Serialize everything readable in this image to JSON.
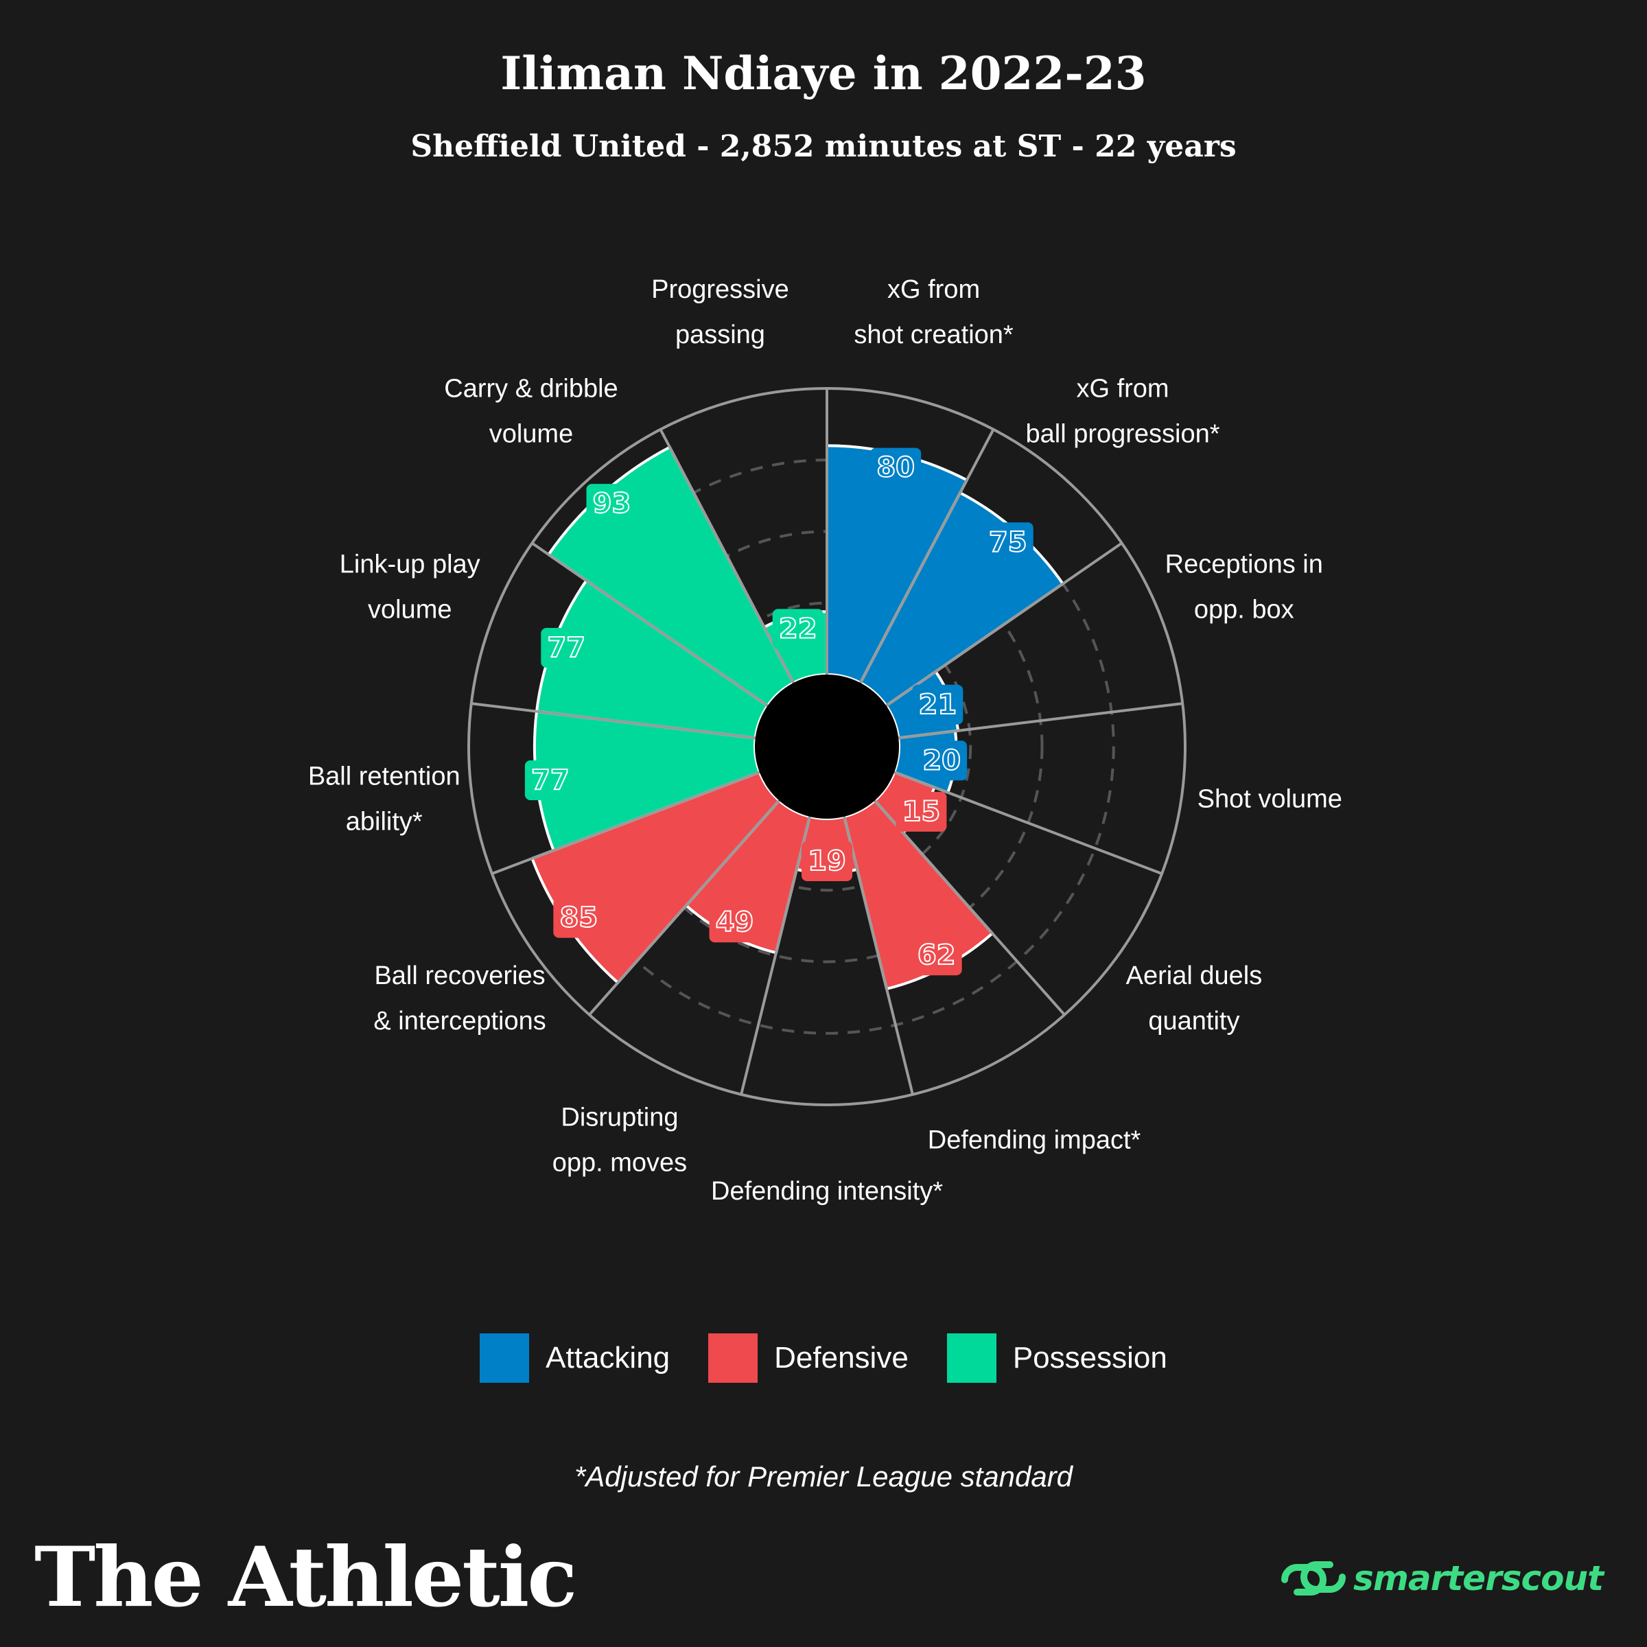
{
  "header": {
    "title": "Iliman Ndiaye in 2022-23",
    "subtitle": "Sheffield United - 2,852 minutes at ST - 22 years"
  },
  "chart_data": {
    "type": "radial_bar",
    "title": "Iliman Ndiaye in 2022-23",
    "subtitle": "Sheffield United - 2,852 minutes at ST - 22 years",
    "scale": [
      0,
      100
    ],
    "categories": [
      {
        "label": [
          "xG from",
          "shot creation*"
        ],
        "value": 80,
        "group": "Attacking"
      },
      {
        "label": [
          "xG from",
          "ball progression*"
        ],
        "value": 75,
        "group": "Attacking"
      },
      {
        "label": [
          "Receptions in",
          "opp. box"
        ],
        "value": 21,
        "group": "Attacking"
      },
      {
        "label": [
          "Shot volume"
        ],
        "value": 20,
        "group": "Attacking"
      },
      {
        "label": [
          "Aerial duels",
          "quantity"
        ],
        "value": 15,
        "group": "Defensive"
      },
      {
        "label": [
          "Defending impact*"
        ],
        "value": 62,
        "group": "Defensive"
      },
      {
        "label": [
          "Defending intensity*"
        ],
        "value": 19,
        "group": "Defensive"
      },
      {
        "label": [
          "Disrupting",
          "opp. moves"
        ],
        "value": 49,
        "group": "Defensive"
      },
      {
        "label": [
          "Ball recoveries",
          "& interceptions"
        ],
        "value": 85,
        "group": "Defensive"
      },
      {
        "label": [
          "Ball retention",
          "ability*"
        ],
        "value": 77,
        "group": "Possession"
      },
      {
        "label": [
          "Link-up play",
          "volume"
        ],
        "value": 77,
        "group": "Possession"
      },
      {
        "label": [
          "Carry & dribble",
          "volume"
        ],
        "value": 93,
        "group": "Possession"
      },
      {
        "label": [
          "Progressive",
          "passing"
        ],
        "value": 22,
        "group": "Possession"
      }
    ],
    "legend": [
      {
        "name": "Attacking",
        "color": "#0080c6"
      },
      {
        "name": "Defensive",
        "color": "#ef4a4d"
      },
      {
        "name": "Possession",
        "color": "#00d99a"
      }
    ],
    "legend_position": "bottom"
  },
  "footnote": "*Adjusted for Premier League standard",
  "branding": {
    "left": "The Athletic",
    "right": "smarterscout"
  }
}
